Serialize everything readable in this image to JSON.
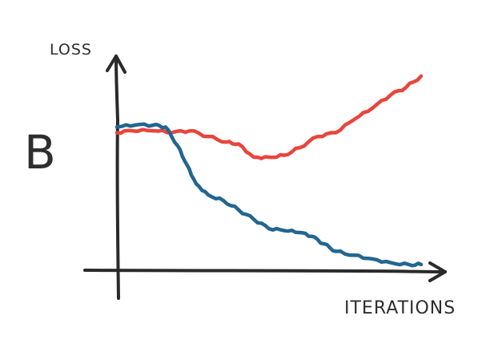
{
  "chart_data": {
    "type": "line",
    "panel_label": "B",
    "title": "",
    "xlabel": "ITERATIONS",
    "ylabel": "LOSS",
    "x_ticks": [],
    "y_ticks": [],
    "grid": false,
    "legend": "none",
    "xlim": [
      0,
      100
    ],
    "ylim": [
      0,
      100
    ],
    "series": [
      {
        "color": "#e8453c",
        "x": [
          0,
          5,
          12,
          18,
          24,
          30,
          36,
          40,
          45,
          50,
          55,
          60,
          66,
          72,
          78,
          84,
          90,
          95,
          100
        ],
        "y": [
          73,
          74,
          74,
          73,
          74,
          71,
          68,
          67,
          60,
          60,
          61,
          65,
          71,
          73,
          80,
          86,
          93,
          97,
          103
        ]
      },
      {
        "color": "#23668f",
        "x": [
          0,
          6,
          12,
          16,
          20,
          23,
          26,
          30,
          35,
          40,
          45,
          50,
          55,
          60,
          64,
          68,
          72,
          78,
          84,
          90,
          96,
          100
        ],
        "y": [
          76,
          77,
          77,
          76,
          66,
          56,
          46,
          40,
          37,
          32,
          27,
          22,
          21,
          20,
          18,
          14,
          10,
          8,
          6,
          4,
          3,
          3
        ]
      }
    ]
  }
}
